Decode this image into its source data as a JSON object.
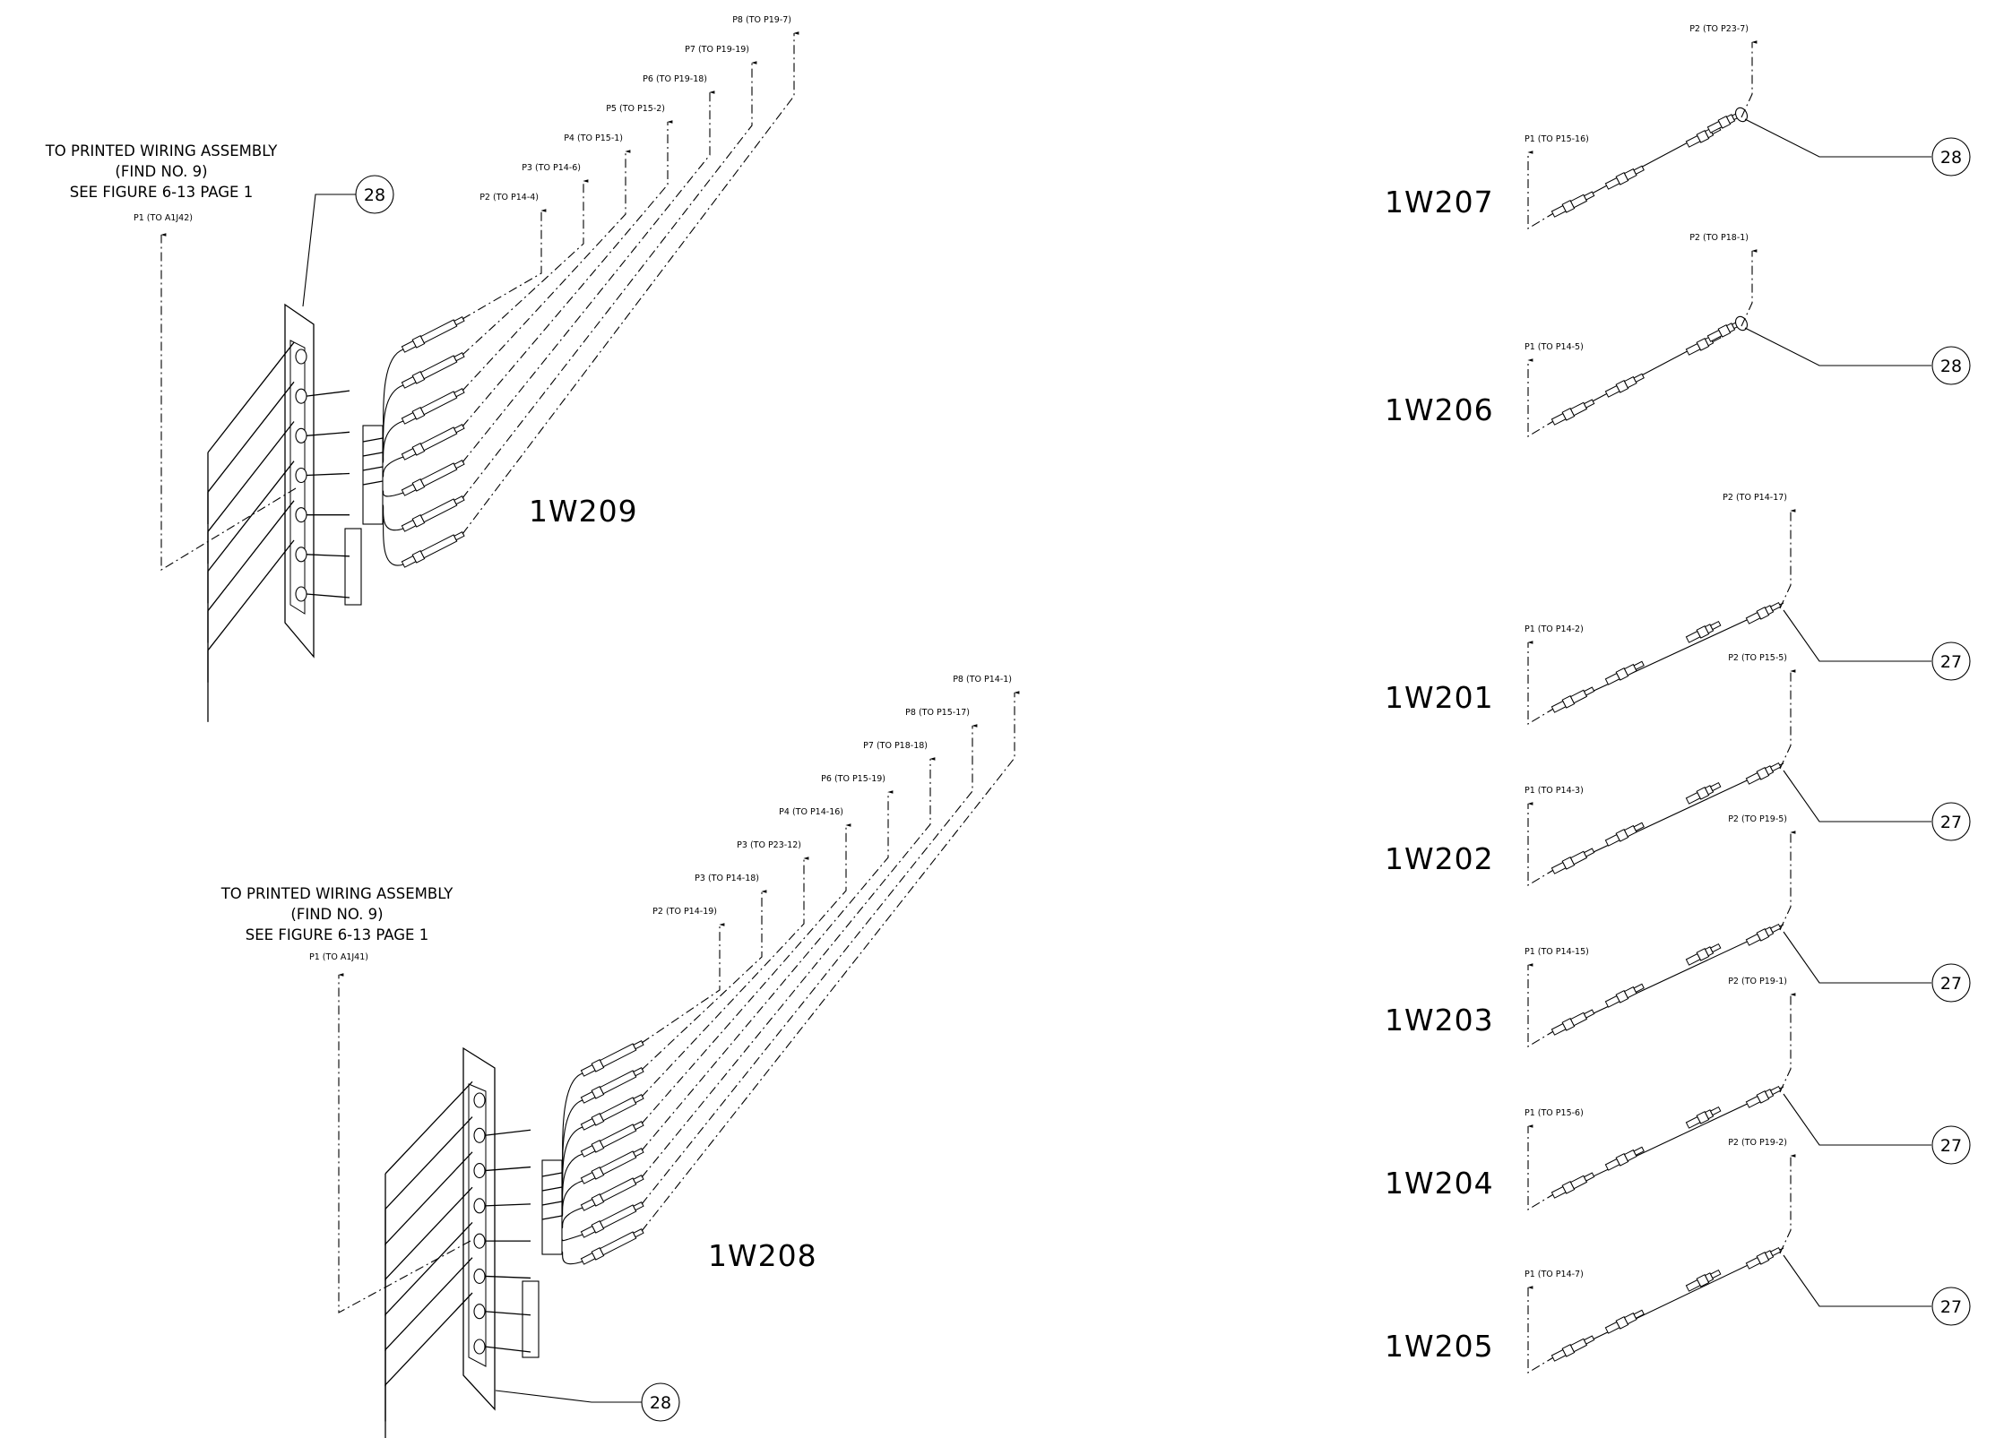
{
  "assemblies": {
    "w209": {
      "id": "1W209",
      "note": [
        "TO PRINTED WIRING ASSEMBLY",
        "(FIND NO. 9)",
        "SEE FIGURE 6-13 PAGE 1"
      ],
      "p1": "P1 (TO A1J42)",
      "callout": "28",
      "plugs": [
        "P2 (TO P14-4)",
        "P3 (TO P14-6)",
        "P4 (TO P15-1)",
        "P5 (TO P15-2)",
        "P6 (TO P19-18)",
        "P7 (TO P19-19)",
        "P8 (TO P19-7)"
      ]
    },
    "w208": {
      "id": "1W208",
      "note": [
        "TO PRINTED WIRING ASSEMBLY",
        "(FIND NO. 9)",
        "SEE FIGURE 6-13 PAGE 1"
      ],
      "p1": "P1 (TO A1J41)",
      "callout": "28",
      "plugs": [
        "P2 (TO P14-19)",
        "P3 (TO P14-18)",
        "P3 (TO P23-12)",
        "P4 (TO P14-16)",
        "P6 (TO P15-19)",
        "P7 (TO P18-18)",
        "P8 (TO P15-17)",
        "P8 (TO P14-1)"
      ]
    },
    "singles": [
      {
        "id": "1W207",
        "p1": "P1 (TO P15-16)",
        "p2": "P2 (TO P23-7)",
        "callout": "28"
      },
      {
        "id": "1W206",
        "p1": "P1 (TO P14-5)",
        "p2": "P2 (TO P18-1)",
        "callout": "28"
      },
      {
        "id": "1W201",
        "p1": "P1 (TO P14-2)",
        "p2": "P2 (TO P14-17)",
        "callout": "27"
      },
      {
        "id": "1W202",
        "p1": "P1 (TO P14-3)",
        "p2": "P2 (TO P15-5)",
        "callout": "27"
      },
      {
        "id": "1W203",
        "p1": "P1 (TO P14-15)",
        "p2": "P2 (TO P19-5)",
        "callout": "27"
      },
      {
        "id": "1W204",
        "p1": "P1 (TO P15-6)",
        "p2": "P2 (TO P19-1)",
        "callout": "27"
      },
      {
        "id": "1W205",
        "p1": "P1 (TO P14-7)",
        "p2": "P2 (TO P19-2)",
        "callout": "27"
      }
    ]
  }
}
